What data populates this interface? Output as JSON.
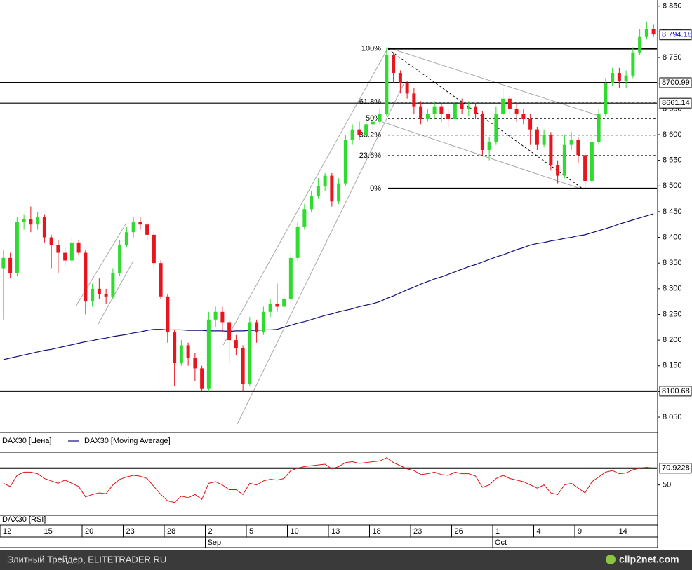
{
  "chart_data": {
    "type": "candlestick",
    "price_series_name": "DAX30 [Цена]",
    "categories": [
      "12",
      null,
      null,
      null,
      null,
      null,
      "15",
      null,
      null,
      null,
      null,
      null,
      "20",
      null,
      null,
      null,
      null,
      null,
      "23",
      null,
      null,
      null,
      null,
      null,
      "28",
      null,
      null,
      null,
      null,
      null,
      "2",
      null,
      null,
      null,
      null,
      null,
      "5",
      null,
      null,
      null,
      null,
      null,
      "10",
      null,
      null,
      null,
      null,
      null,
      "13",
      null,
      null,
      null,
      null,
      null,
      "18",
      null,
      null,
      null,
      null,
      null,
      "23",
      null,
      null,
      null,
      null,
      null,
      "26",
      null,
      null,
      null,
      null,
      null,
      "1",
      null,
      null,
      null,
      null,
      null,
      "4",
      null,
      null,
      null,
      null,
      null,
      "9",
      null,
      null,
      null,
      null,
      null,
      "14",
      null,
      null,
      null,
      null,
      null
    ],
    "months": [
      null,
      null,
      null,
      null,
      null,
      null,
      null,
      null,
      null,
      null,
      null,
      null,
      null,
      null,
      null,
      null,
      null,
      null,
      null,
      null,
      null,
      null,
      null,
      null,
      null,
      null,
      null,
      null,
      null,
      null,
      "Sep",
      null,
      null,
      null,
      null,
      null,
      null,
      null,
      null,
      null,
      null,
      null,
      null,
      null,
      null,
      null,
      null,
      null,
      null,
      null,
      null,
      null,
      null,
      null,
      null,
      null,
      null,
      null,
      null,
      null,
      null,
      null,
      null,
      null,
      null,
      null,
      null,
      null,
      null,
      null,
      null,
      null,
      "Oct",
      null,
      null,
      null,
      null,
      null,
      null,
      null,
      null,
      null,
      null,
      null,
      null,
      null,
      null,
      null,
      null,
      null,
      null,
      null,
      null,
      null,
      null,
      null
    ],
    "open": [
      8340,
      8360,
      8330,
      8430,
      8435,
      8425,
      8440,
      8400,
      8385,
      8370,
      8355,
      8390,
      8370,
      8275,
      8300,
      8290,
      8285,
      8330,
      8385,
      8410,
      8430,
      8425,
      8405,
      8350,
      8285,
      8215,
      8155,
      8190,
      8165,
      8145,
      8105,
      8240,
      8255,
      8235,
      8200,
      8185,
      8115,
      8235,
      8215,
      8255,
      8270,
      8265,
      8280,
      8360,
      8420,
      8455,
      8480,
      8500,
      8520,
      8470,
      8505,
      8590,
      8610,
      8600,
      8620,
      8625,
      8640,
      8755,
      8720,
      8700,
      8680,
      8655,
      8630,
      8640,
      8655,
      8640,
      8630,
      8660,
      8650,
      8655,
      8640,
      8570,
      8585,
      8640,
      8670,
      8650,
      8640,
      8630,
      8610,
      8580,
      8600,
      8540,
      8520,
      8580,
      8590,
      8560,
      8510,
      8585,
      8640,
      8700,
      8720,
      8705,
      8715,
      8760,
      8790,
      8805
    ],
    "high": [
      8375,
      8370,
      8440,
      8445,
      8460,
      8450,
      8445,
      8405,
      8395,
      8380,
      8400,
      8395,
      8375,
      8310,
      8320,
      8300,
      8340,
      8395,
      8420,
      8440,
      8440,
      8430,
      8410,
      8355,
      8290,
      8220,
      8200,
      8195,
      8175,
      8150,
      8255,
      8265,
      8265,
      8240,
      8210,
      8190,
      8245,
      8240,
      8265,
      8280,
      8310,
      8290,
      8370,
      8430,
      8465,
      8490,
      8515,
      8525,
      8525,
      8515,
      8600,
      8620,
      8625,
      8630,
      8635,
      8650,
      8770,
      8760,
      8725,
      8705,
      8690,
      8665,
      8650,
      8665,
      8660,
      8650,
      8675,
      8670,
      8665,
      8660,
      8645,
      8595,
      8655,
      8690,
      8675,
      8660,
      8650,
      8640,
      8615,
      8610,
      8605,
      8550,
      8600,
      8605,
      8595,
      8565,
      8595,
      8650,
      8710,
      8730,
      8730,
      8725,
      8770,
      8805,
      8820,
      8815
    ],
    "low": [
      8240,
      8320,
      8325,
      8415,
      8410,
      8415,
      8390,
      8340,
      8330,
      8345,
      8350,
      8365,
      8250,
      8265,
      8280,
      8270,
      8280,
      8325,
      8380,
      8400,
      8415,
      8395,
      8340,
      8280,
      8195,
      8110,
      8150,
      8150,
      8120,
      8100,
      8100,
      8225,
      8215,
      8155,
      8170,
      8100,
      8110,
      8195,
      8210,
      8245,
      8255,
      8260,
      8275,
      8355,
      8415,
      8450,
      8475,
      8490,
      8460,
      8465,
      8500,
      8580,
      8590,
      8595,
      8610,
      8620,
      8635,
      8700,
      8680,
      8670,
      8640,
      8620,
      8625,
      8630,
      8625,
      8615,
      8625,
      8640,
      8635,
      8630,
      8560,
      8550,
      8580,
      8635,
      8640,
      8625,
      8620,
      8580,
      8570,
      8575,
      8530,
      8505,
      8515,
      8570,
      8545,
      8495,
      8505,
      8580,
      8635,
      8695,
      8690,
      8690,
      8710,
      8755,
      8785,
      8790
    ],
    "close": [
      8360,
      8330,
      8430,
      8435,
      8425,
      8440,
      8400,
      8385,
      8370,
      8355,
      8390,
      8370,
      8275,
      8300,
      8290,
      8285,
      8330,
      8385,
      8410,
      8430,
      8425,
      8405,
      8350,
      8285,
      8215,
      8155,
      8190,
      8165,
      8145,
      8105,
      8240,
      8255,
      8235,
      8200,
      8185,
      8115,
      8235,
      8215,
      8255,
      8270,
      8265,
      8280,
      8360,
      8420,
      8455,
      8480,
      8500,
      8520,
      8470,
      8505,
      8590,
      8610,
      8600,
      8620,
      8625,
      8640,
      8755,
      8720,
      8700,
      8680,
      8655,
      8630,
      8640,
      8655,
      8640,
      8630,
      8660,
      8650,
      8655,
      8640,
      8570,
      8585,
      8640,
      8670,
      8650,
      8640,
      8630,
      8610,
      8580,
      8600,
      8540,
      8520,
      8580,
      8590,
      8560,
      8510,
      8585,
      8640,
      8700,
      8720,
      8705,
      8715,
      8760,
      8790,
      8805,
      8795
    ],
    "colors": {
      "up": "#2edb2e",
      "down": "#e8141e"
    },
    "series": [
      {
        "name": "DAX30 [Moving Average]",
        "color": "#10107a",
        "values": [
          8162,
          8165,
          8168,
          8171,
          8174,
          8177,
          8180,
          8182,
          8185,
          8188,
          8191,
          8194,
          8197,
          8199,
          8202,
          8204,
          8207,
          8209,
          8211,
          8214,
          8216,
          8219,
          8221,
          8221,
          8220,
          8220,
          8220,
          8219,
          8219,
          8219,
          8218,
          8218,
          8218,
          8217,
          8218,
          8218,
          8219,
          8219,
          8220,
          8220,
          8221,
          8225,
          8229,
          8233,
          8236,
          8240,
          8244,
          8248,
          8251,
          8255,
          8258,
          8261,
          8265,
          8268,
          8271,
          8275,
          8281,
          8286,
          8292,
          8298,
          8303,
          8309,
          8314,
          8319,
          8323,
          8328,
          8333,
          8338,
          8343,
          8347,
          8352,
          8357,
          8362,
          8366,
          8371,
          8376,
          8380,
          8385,
          8388,
          8390,
          8393,
          8395,
          8398,
          8400,
          8403,
          8405,
          8409,
          8413,
          8417,
          8421,
          8426,
          8430,
          8434,
          8438,
          8442,
          8446
        ]
      }
    ],
    "ylim": [
      8020,
      8862
    ],
    "yticks": [
      {
        "value": 8050,
        "label": "8 050"
      },
      {
        "value": 8100,
        "label": "8 100"
      },
      {
        "value": 8150,
        "label": "8 150"
      },
      {
        "value": 8200,
        "label": "8 200"
      },
      {
        "value": 8250,
        "label": "8 250"
      },
      {
        "value": 8300,
        "label": "8 300"
      },
      {
        "value": 8350,
        "label": "8 350"
      },
      {
        "value": 8400,
        "label": "8 400"
      },
      {
        "value": 8450,
        "label": "8 450"
      },
      {
        "value": 8500,
        "label": "8 500"
      },
      {
        "value": 8550,
        "label": "8 550"
      },
      {
        "value": 8600,
        "label": "8 600"
      },
      {
        "value": 8650,
        "label": "8 650"
      },
      {
        "value": 8700,
        "label": "8 700"
      },
      {
        "value": 8750,
        "label": "8 750"
      },
      {
        "value": 8800,
        "label": "8 800"
      },
      {
        "value": 8850,
        "label": "8 850"
      }
    ],
    "price_lines": [
      8700.99,
      8661.14,
      8100.68
    ],
    "last_price": {
      "value": 8794.18,
      "label": "8 794.18"
    },
    "fibonacci": {
      "high": 8767,
      "low": 8495,
      "levels": [
        {
          "value": 100,
          "label": "100%"
        },
        {
          "value": 61.8,
          "label": "61.8%"
        },
        {
          "value": 50,
          "label": "50%"
        },
        {
          "value": 38.2,
          "label": "38.2%"
        },
        {
          "value": 23.6,
          "label": "23.6%"
        },
        {
          "value": 0,
          "label": "0%"
        }
      ]
    },
    "rsi": {
      "name": "DAX30 [RSI]",
      "color": "#dd1111",
      "ylim": [
        12,
        90
      ],
      "yticks": [
        50
      ],
      "line": 70.9228,
      "values": [
        52,
        48,
        62,
        66,
        66,
        64,
        58,
        55,
        52,
        56,
        52,
        48,
        35,
        38,
        40,
        39,
        50,
        57,
        60,
        62,
        61,
        58,
        48,
        38,
        30,
        28,
        36,
        34,
        38,
        32,
        52,
        54,
        50,
        44,
        44,
        38,
        52,
        50,
        55,
        57,
        56,
        58,
        68,
        71,
        73,
        74,
        75,
        76,
        70,
        73,
        78,
        79,
        77,
        78,
        79,
        80,
        84,
        78,
        74,
        70,
        68,
        63,
        64,
        66,
        63,
        62,
        66,
        64,
        64,
        61,
        47,
        50,
        58,
        62,
        58,
        56,
        54,
        50,
        46,
        50,
        40,
        38,
        50,
        52,
        46,
        40,
        54,
        60,
        66,
        68,
        64,
        65,
        69,
        71,
        72,
        71
      ]
    }
  },
  "footer": {
    "text": "Элитный Трейдер, ELITETRADER.RU",
    "logo": "clip2net.com"
  }
}
